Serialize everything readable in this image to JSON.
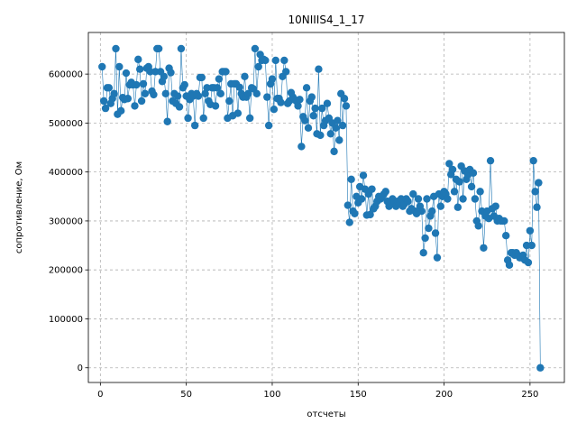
{
  "chart_data": {
    "type": "line",
    "title": "10NIIIS4_1_17",
    "xlabel": "отсчеты",
    "ylabel": "сопротивление, Ом",
    "xlim": [
      -7,
      270
    ],
    "ylim": [
      -30000,
      685000
    ],
    "grid": true,
    "marker": "circle",
    "color": "#1f77b4",
    "x_ticks": [
      0,
      50,
      100,
      150,
      200,
      250
    ],
    "y_ticks": [
      0,
      100000,
      200000,
      300000,
      400000,
      500000,
      600000
    ],
    "x_tick_labels": [
      "0",
      "50",
      "100",
      "150",
      "200",
      "250"
    ],
    "y_tick_labels": [
      "0",
      "100000",
      "200000",
      "300000",
      "400000",
      "500000",
      "600000"
    ],
    "series": [
      {
        "values": [
          615000,
          545000,
          530000,
          572000,
          572000,
          540000,
          550000,
          560000,
          652000,
          518000,
          615000,
          525000,
          552000,
          548000,
          602000,
          550000,
          578000,
          583000,
          578000,
          535000,
          578000,
          630000,
          610000,
          545000,
          580000,
          560000,
          612000,
          615000,
          605000,
          565000,
          558000,
          605000,
          652000,
          652000,
          605000,
          585000,
          595000,
          560000,
          503000,
          612000,
          603000,
          545000,
          560000,
          540000,
          555000,
          533000,
          652000,
          572000,
          578000,
          555000,
          510000,
          548000,
          560000,
          555000,
          495000,
          560000,
          555000,
          593000,
          593000,
          510000,
          560000,
          572000,
          545000,
          538000,
          572000,
          572000,
          535000,
          572000,
          590000,
          560000,
          605000,
          605000,
          605000,
          510000,
          545000,
          580000,
          515000,
          580000,
          580000,
          520000,
          573000,
          560000,
          553000,
          595000,
          553000,
          560000,
          510000,
          572000,
          570000,
          652000,
          560000,
          615000,
          640000,
          628000,
          630000,
          628000,
          553000,
          495000,
          580000,
          590000,
          528000,
          628000,
          550000,
          550000,
          542000,
          595000,
          628000,
          605000,
          540000,
          545000,
          562000,
          553000,
          548000,
          545000,
          535000,
          548000,
          452000,
          513000,
          505000,
          572000,
          490000,
          545000,
          553000,
          515000,
          530000,
          478000,
          610000,
          475000,
          530000,
          495000,
          505000,
          540000,
          510000,
          478000,
          500000,
          442000,
          490000,
          505000,
          465000,
          560000,
          495000,
          550000,
          535000,
          332000,
          297000,
          385000,
          320000,
          315000,
          350000,
          337000,
          370000,
          345000,
          393000,
          365000,
          312000,
          355000,
          313000,
          365000,
          325000,
          330000,
          340000,
          350000,
          345000,
          350000,
          355000,
          360000,
          340000,
          330000,
          335000,
          345000,
          340000,
          330000,
          340000,
          335000,
          345000,
          330000,
          335000,
          345000,
          340000,
          320000,
          325000,
          355000,
          320000,
          315000,
          345000,
          330000,
          320000,
          235000,
          265000,
          345000,
          285000,
          310000,
          320000,
          350000,
          275000,
          225000,
          355000,
          330000,
          350000,
          360000,
          355000,
          345000,
          417000,
          395000,
          405000,
          360000,
          385000,
          328000,
          380000,
          412000,
          345000,
          402000,
          385000,
          395000,
          405000,
          370000,
          398000,
          345000,
          300000,
          290000,
          360000,
          320000,
          245000,
          310000,
          320000,
          305000,
          423000,
          325000,
          310000,
          330000,
          300000,
          305000,
          300000,
          300000,
          300000,
          270000,
          220000,
          210000,
          235000,
          235000,
          230000,
          235000,
          230000,
          225000,
          225000,
          230000,
          220000,
          250000,
          215000,
          280000,
          250000,
          423000,
          360000,
          328000,
          378000,
          0
        ]
      }
    ]
  }
}
